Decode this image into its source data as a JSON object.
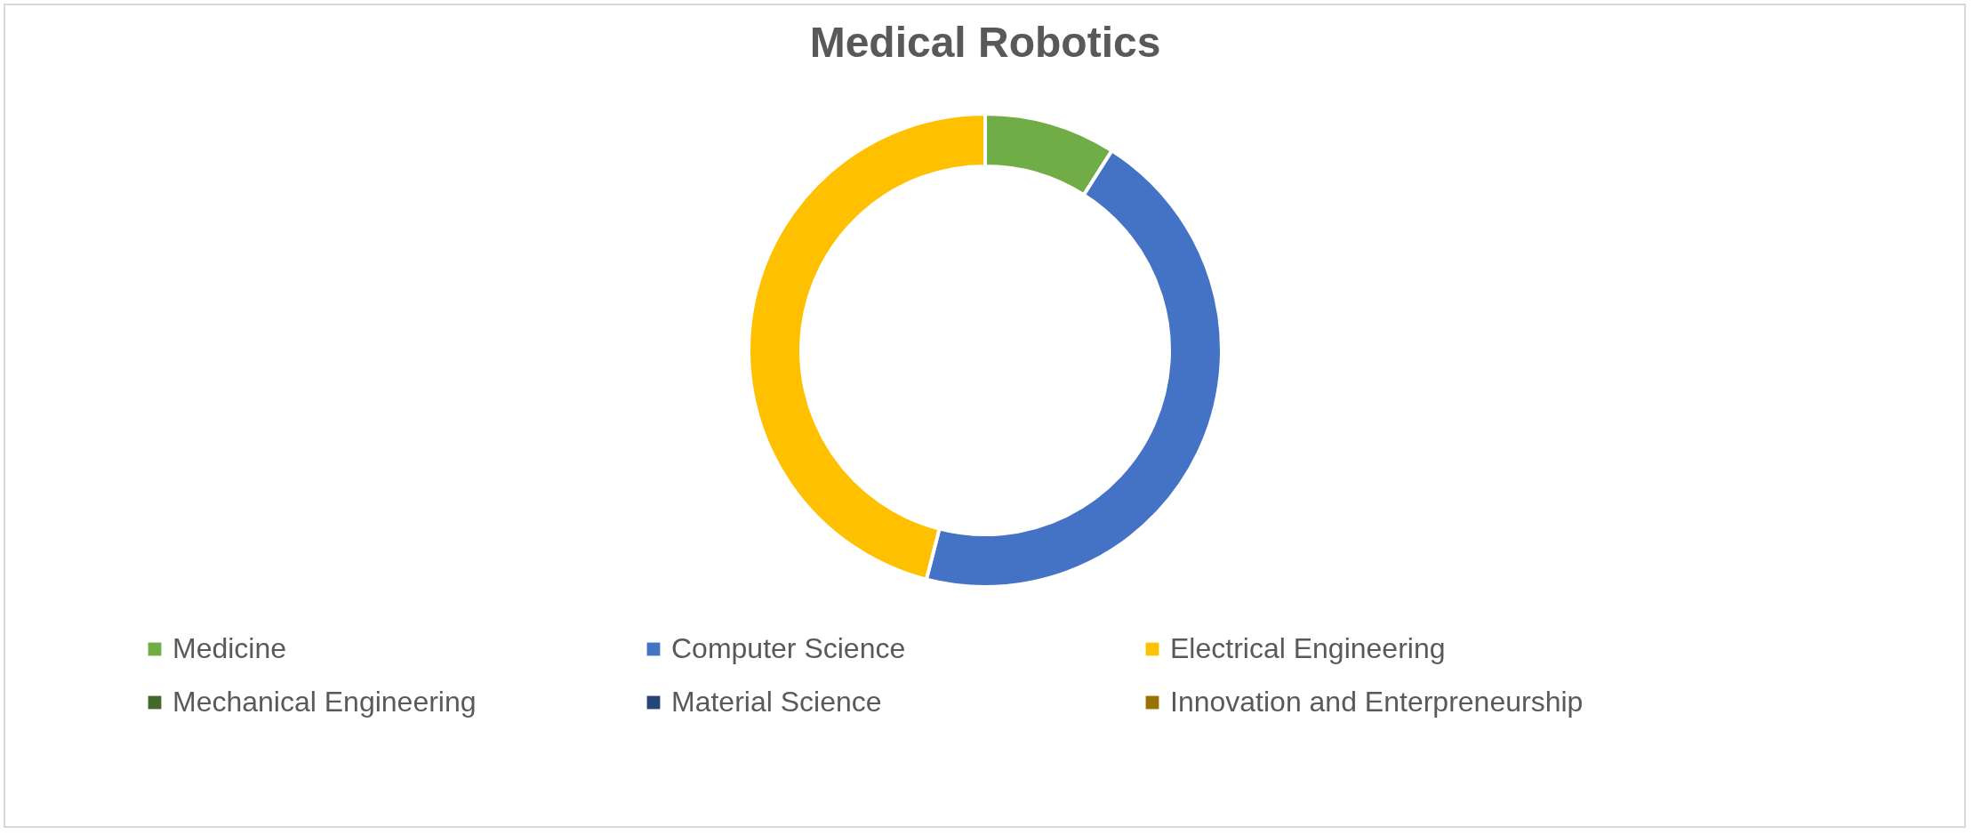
{
  "chart_data": {
    "type": "donut",
    "title": "Medical Robotics",
    "categories": [
      "Medicine",
      "Computer Science",
      "Electrical Engineering",
      "Mechanical Engineering",
      "Material Science",
      "Innovation and Enterpreneurship"
    ],
    "values": [
      9,
      45,
      46,
      0,
      0,
      0
    ],
    "colors": [
      "#70ad47",
      "#4472c4",
      "#ffc000",
      "#43682b",
      "#264478",
      "#997300"
    ],
    "legend": "bottom"
  }
}
